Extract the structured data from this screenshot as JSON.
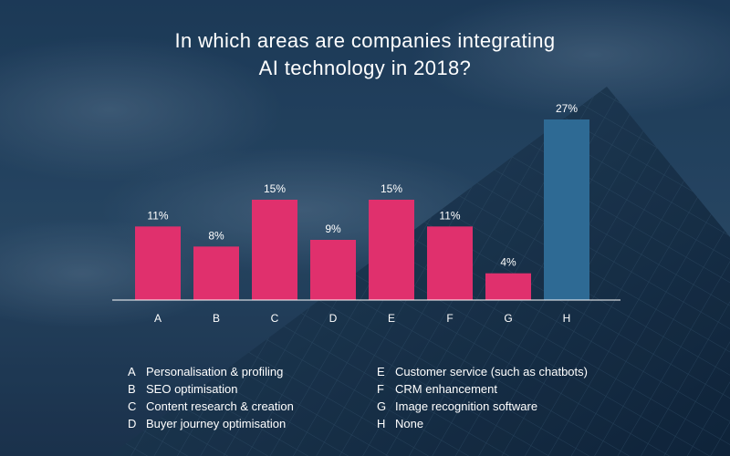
{
  "title": {
    "line1": "In which areas are companies integrating",
    "line2": "AI technology in 2018?"
  },
  "colors": {
    "bar": "#e0306d",
    "highlight": "#2e6a94",
    "axis": "#ffffff",
    "text": "#ffffff"
  },
  "chart_data": {
    "type": "bar",
    "title": "In which areas are companies integrating AI technology in 2018?",
    "xlabel": "",
    "ylabel": "",
    "categories": [
      "A",
      "B",
      "C",
      "D",
      "E",
      "F",
      "G",
      "H"
    ],
    "values": [
      11,
      8,
      15,
      9,
      15,
      11,
      4,
      27
    ],
    "value_labels": [
      "11%",
      "8%",
      "15%",
      "9%",
      "15%",
      "11%",
      "4%",
      "27%"
    ],
    "ylim": [
      0,
      27
    ],
    "highlighted_category": "H",
    "grid": false
  },
  "legend": {
    "items": [
      {
        "key": "A",
        "label": "Personalisation & profiling"
      },
      {
        "key": "B",
        "label": "SEO optimisation"
      },
      {
        "key": "C",
        "label": "Content research & creation"
      },
      {
        "key": "D",
        "label": "Buyer journey optimisation"
      },
      {
        "key": "E",
        "label": "Customer service (such as chatbots)"
      },
      {
        "key": "F",
        "label": "CRM enhancement"
      },
      {
        "key": "G",
        "label": "Image recognition software"
      },
      {
        "key": "H",
        "label": "None"
      }
    ]
  }
}
